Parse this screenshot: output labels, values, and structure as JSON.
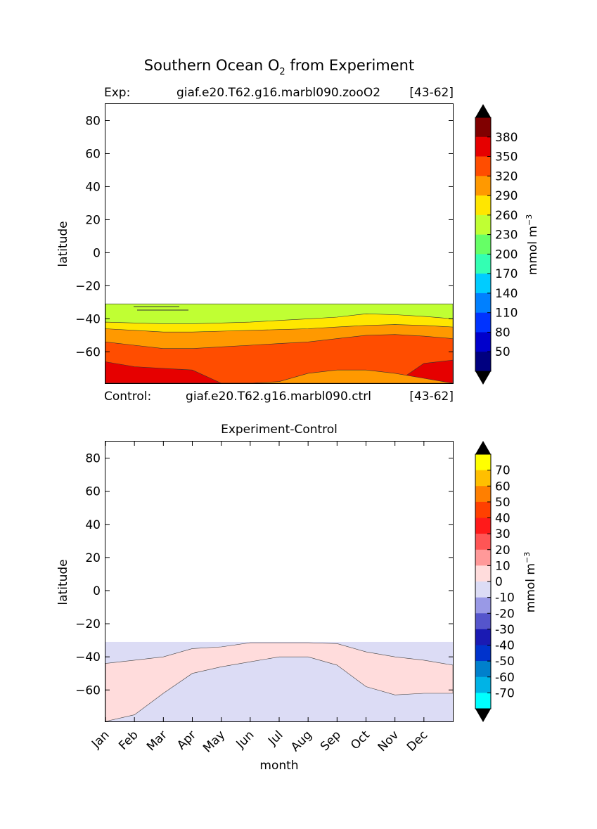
{
  "figure": {
    "title": "Southern Ocean O",
    "title_sub": "2",
    "title_tail": " from Experiment"
  },
  "chart_data": [
    {
      "type": "contour",
      "panel": "experiment",
      "header_left": "Exp:",
      "header_center": "giaf.e20.T62.g16.marbl090.zooO2",
      "header_right": "[43-62]",
      "footer_left": "Control:",
      "footer_center": "giaf.e20.T62.g16.marbl090.ctrl",
      "footer_right": "[43-62]",
      "ylabel": "latitude",
      "ylim": [
        -79,
        90
      ],
      "yticks": [
        "80",
        "60",
        "40",
        "20",
        "0",
        "−20",
        "−40",
        "−60"
      ],
      "ytick_values": [
        80,
        60,
        40,
        20,
        0,
        -20,
        -40,
        -60
      ],
      "x_months_range": [
        0.5,
        12.5
      ],
      "data_top_latitude": -31,
      "contours": [
        {
          "level": "230-260",
          "color": "#c0ff33",
          "upper_lat": [
            -31,
            -31,
            -31,
            -31,
            -31,
            -31,
            -31,
            -31,
            -31,
            -31,
            -31,
            -31,
            -31
          ]
        },
        {
          "level": "260-290",
          "color": "#ffe600",
          "upper_lat": [
            -42,
            -42.5,
            -43,
            -43,
            -42.5,
            -42,
            -41,
            -40,
            -39,
            -37,
            -37.5,
            -38.5,
            -40
          ]
        },
        {
          "level": "290-320",
          "color": "#ff9900",
          "upper_lat": [
            -46,
            -47,
            -48,
            -48,
            -47.5,
            -47,
            -46.5,
            -46,
            -45,
            -44,
            -43.5,
            -44,
            -45
          ]
        },
        {
          "level": "320-350",
          "color": "#ff4d00",
          "upper_lat": [
            -54,
            -56,
            -58,
            -58,
            -57,
            -56,
            -55,
            -54,
            -52,
            -50,
            -49.5,
            -50.5,
            -52
          ]
        },
        {
          "level": "350-380",
          "color": "#e60000",
          "upper_lat": [
            -66,
            -69,
            -70,
            -71,
            -79,
            -79,
            -79,
            -79,
            -79,
            -79,
            -79,
            -79,
            -79
          ]
        },
        {
          "level": "350-380",
          "color": "#e60000",
          "note": "small patch near Dec",
          "upper_lat": [
            -79,
            -79,
            -79,
            -79,
            -79,
            -79,
            -79,
            -79,
            -79,
            -79,
            -79,
            -67,
            -65
          ]
        },
        {
          "level": "290-320",
          "color": "#ff9900",
          "note": "band near the bottom",
          "upper_lat": [
            -79,
            -79,
            -79,
            -79,
            -79,
            -79,
            -78,
            -73,
            -71,
            -71,
            -73,
            -76,
            -79
          ]
        }
      ],
      "colorbar": {
        "label": "mmol m",
        "label_sup": "−3",
        "tick_labels": [
          "380",
          "350",
          "320",
          "290",
          "260",
          "230",
          "200",
          "170",
          "140",
          "110",
          "80",
          "50"
        ],
        "colors": [
          "#800000",
          "#e60000",
          "#ff4d00",
          "#ff9900",
          "#ffe600",
          "#c0ff33",
          "#66ff66",
          "#33ffb3",
          "#00ccff",
          "#0080ff",
          "#0033ff",
          "#0000cc",
          "#000080"
        ],
        "extend": "both"
      }
    },
    {
      "type": "contour",
      "panel": "difference",
      "title": "Experiment-Control",
      "xlabel": "month",
      "ylabel": "latitude",
      "categories": [
        "Jan",
        "Feb",
        "Mar",
        "Apr",
        "May",
        "Jun",
        "Jul",
        "Aug",
        "Sep",
        "Oct",
        "Nov",
        "Dec"
      ],
      "ylim": [
        -79,
        90
      ],
      "yticks": [
        "80",
        "60",
        "40",
        "20",
        "0",
        "−20",
        "−40",
        "−60"
      ],
      "ytick_values": [
        80,
        60,
        40,
        20,
        0,
        -20,
        -40,
        -60
      ],
      "x_months_range": [
        0.5,
        12.5
      ],
      "data_top_latitude": -31,
      "background_level": {
        "level": "-10-0",
        "color": "#dcdcf5"
      },
      "positive_region": {
        "level": "0-10",
        "color": "#ffdcdc",
        "upper_lat": [
          -44,
          -42,
          -40,
          -35,
          -34,
          -31.5,
          -31.5,
          -31.5,
          -32,
          -37,
          -40,
          -42,
          -45
        ],
        "inner_lower_lat": [
          -79,
          -75,
          -62,
          -50,
          -46,
          -43,
          -40,
          -40,
          -45,
          -58,
          -63,
          -62,
          -62
        ]
      },
      "colorbar": {
        "label": "mmol m",
        "label_sup": "−3",
        "tick_labels": [
          "70",
          "60",
          "50",
          "40",
          "30",
          "20",
          "10",
          "0",
          "-10",
          "-20",
          "-30",
          "-40",
          "-50",
          "-60",
          "-70"
        ],
        "colors": [
          "#ffff00",
          "#ffbf00",
          "#ff7f00",
          "#ff4000",
          "#ff1a1a",
          "#ff5555",
          "#ff9999",
          "#ffdcdc",
          "#dcdcf5",
          "#9999e6",
          "#5555cc",
          "#1a1ab3",
          "#0033cc",
          "#0080cc",
          "#00b3e6",
          "#00ffff"
        ],
        "extend": "both"
      }
    }
  ]
}
